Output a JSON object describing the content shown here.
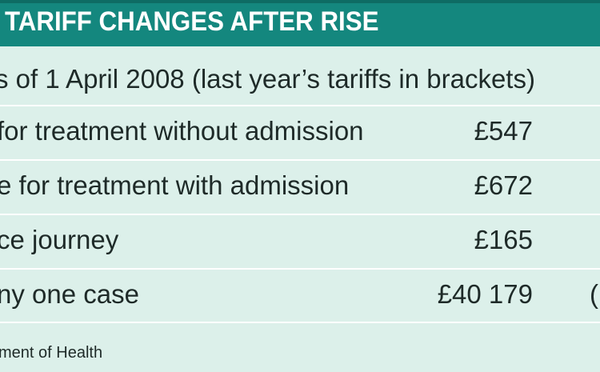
{
  "header": {
    "title": "TARIFF CHANGES AFTER RISE"
  },
  "subtitle": "s of 1 April 2008 (last year’s tariffs in brackets)",
  "rows": [
    {
      "label": "for treatment without admission",
      "value": "£547",
      "extra": ""
    },
    {
      "label": "e for treatment with admission",
      "value": "£672",
      "extra": ""
    },
    {
      "label": "ce journey",
      "value": "£165",
      "extra": ""
    },
    {
      "label": "ny one case",
      "value": "£40 179",
      "extra": "("
    }
  ],
  "footer": {
    "source": "ment of Health"
  },
  "colors": {
    "header_bg": "#14877e",
    "panel_bg": "#dcf0ea",
    "text": "#1e2a28"
  }
}
